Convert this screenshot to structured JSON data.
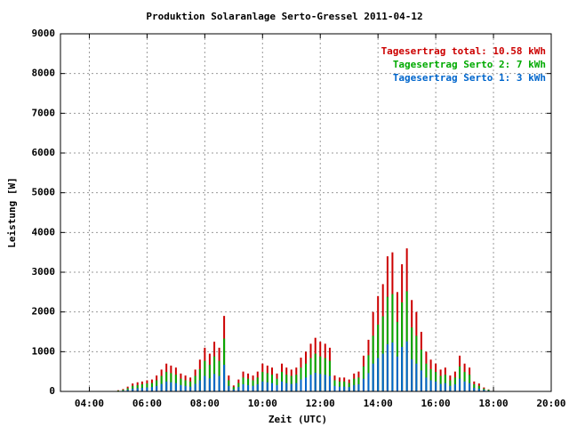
{
  "chart_data": {
    "type": "bar",
    "title": "Produktion Solaranlage Serto-Gressel 2011-04-12",
    "xlabel": "Zeit (UTC)",
    "ylabel": "Leistung [W]",
    "x": [
      5,
      5.17,
      5.33,
      5.5,
      5.67,
      5.83,
      6,
      6.17,
      6.33,
      6.5,
      6.67,
      6.83,
      7,
      7.17,
      7.33,
      7.5,
      7.67,
      7.83,
      8,
      8.17,
      8.33,
      8.5,
      8.67,
      8.83,
      9,
      9.17,
      9.33,
      9.5,
      9.67,
      9.83,
      10,
      10.17,
      10.33,
      10.5,
      10.67,
      10.83,
      11,
      11.17,
      11.33,
      11.5,
      11.67,
      11.83,
      12,
      12.17,
      12.33,
      12.5,
      12.67,
      12.83,
      13,
      13.17,
      13.33,
      13.5,
      13.67,
      13.83,
      14,
      14.17,
      14.33,
      14.5,
      14.67,
      14.83,
      15,
      15.17,
      15.33,
      15.5,
      15.67,
      15.83,
      16,
      16.17,
      16.33,
      16.5,
      16.67,
      16.83,
      17,
      17.17,
      17.33,
      17.5,
      17.67,
      17.83
    ],
    "series": [
      {
        "name": "Tagesertrag total: 10.58 kWh",
        "color": "#cc0000",
        "values": [
          30,
          60,
          120,
          200,
          230,
          250,
          280,
          300,
          400,
          550,
          700,
          650,
          600,
          450,
          400,
          350,
          550,
          800,
          1100,
          950,
          1250,
          1100,
          1900,
          400,
          150,
          300,
          500,
          450,
          400,
          500,
          700,
          650,
          600,
          450,
          700,
          600,
          550,
          600,
          850,
          1000,
          1200,
          1350,
          1250,
          1200,
          1100,
          400,
          350,
          350,
          300,
          450,
          500,
          900,
          1300,
          2000,
          2400,
          2700,
          3400,
          3500,
          2500,
          3200,
          3600,
          2300,
          2000,
          1500,
          1000,
          800,
          700,
          550,
          600,
          400,
          500,
          900,
          700,
          600,
          250,
          200,
          100,
          50
        ]
      },
      {
        "name": "Tagesertrag Serto 2: 7 kWh",
        "color": "#00aa00",
        "values": [
          20,
          40,
          80,
          140,
          160,
          180,
          200,
          210,
          280,
          390,
          490,
          460,
          420,
          320,
          280,
          250,
          390,
          560,
          770,
          670,
          880,
          770,
          1330,
          280,
          110,
          210,
          350,
          320,
          280,
          350,
          490,
          460,
          420,
          320,
          490,
          420,
          390,
          420,
          600,
          700,
          840,
          950,
          880,
          840,
          770,
          280,
          250,
          250,
          210,
          320,
          350,
          630,
          910,
          1400,
          1680,
          1890,
          2380,
          2450,
          1750,
          2240,
          2520,
          1610,
          1400,
          1050,
          700,
          560,
          490,
          390,
          420,
          280,
          350,
          630,
          490,
          420,
          180,
          140,
          70,
          40
        ]
      },
      {
        "name": "Tagesertrag Serto 1: 3 kWh",
        "color": "#0066cc",
        "values": [
          10,
          20,
          40,
          70,
          80,
          90,
          100,
          110,
          140,
          190,
          250,
          230,
          210,
          160,
          140,
          120,
          190,
          280,
          390,
          330,
          440,
          390,
          670,
          140,
          50,
          110,
          180,
          160,
          140,
          180,
          250,
          230,
          210,
          160,
          250,
          210,
          190,
          210,
          300,
          350,
          420,
          470,
          440,
          420,
          390,
          140,
          120,
          120,
          110,
          160,
          180,
          320,
          460,
          700,
          840,
          950,
          1190,
          1230,
          880,
          1120,
          1260,
          810,
          700,
          530,
          350,
          280,
          250,
          190,
          210,
          140,
          180,
          320,
          250,
          210,
          90,
          70,
          40,
          20
        ]
      }
    ],
    "xlim": [
      3,
      20
    ],
    "xticks": [
      {
        "value": 4,
        "label": "04:00"
      },
      {
        "value": 6,
        "label": "06:00"
      },
      {
        "value": 8,
        "label": "08:00"
      },
      {
        "value": 10,
        "label": "10:00"
      },
      {
        "value": 12,
        "label": "12:00"
      },
      {
        "value": 14,
        "label": "14:00"
      },
      {
        "value": 16,
        "label": "16:00"
      },
      {
        "value": 18,
        "label": "18:00"
      },
      {
        "value": 20,
        "label": "20:00"
      }
    ],
    "ylim": [
      0,
      9000
    ],
    "yticks": [
      0,
      1000,
      2000,
      3000,
      4000,
      5000,
      6000,
      7000,
      8000,
      9000
    ],
    "grid": true,
    "legend": "upper right"
  }
}
